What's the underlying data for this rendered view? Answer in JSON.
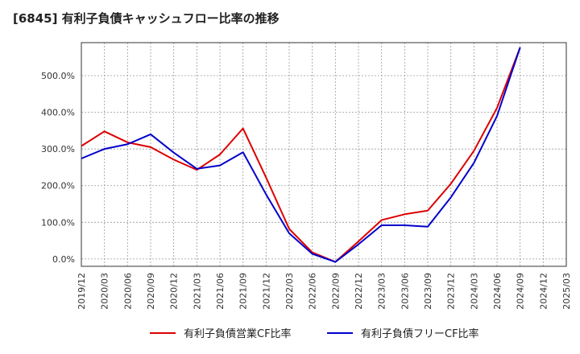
{
  "title": "[6845]  有利子負債キャッシュフロー比率の推移",
  "chart_data": {
    "type": "line",
    "title": "[6845]  有利子負債キャッシュフロー比率の推移",
    "xlabel": "",
    "ylabel": "",
    "x": [
      "2019/12",
      "2020/03",
      "2020/06",
      "2020/09",
      "2020/12",
      "2021/03",
      "2021/06",
      "2021/09",
      "2021/12",
      "2022/03",
      "2022/06",
      "2022/09",
      "2022/12",
      "2023/03",
      "2023/06",
      "2023/09",
      "2023/12",
      "2024/03",
      "2024/06",
      "2024/09"
    ],
    "x_ticks": [
      "2019/12",
      "2020/03",
      "2020/06",
      "2020/09",
      "2020/12",
      "2021/03",
      "2021/06",
      "2021/09",
      "2021/12",
      "2022/03",
      "2022/06",
      "2022/09",
      "2022/12",
      "2023/03",
      "2023/06",
      "2023/09",
      "2023/12",
      "2024/03",
      "2024/06",
      "2024/09",
      "2024/12",
      "2025/03"
    ],
    "y_ticks": [
      0,
      100,
      200,
      300,
      400,
      500
    ],
    "y_tick_labels": [
      "0.0%",
      "100.0%",
      "200.0%",
      "300.0%",
      "400.0%",
      "500.0%"
    ],
    "ylim": [
      -20,
      590
    ],
    "grid": true,
    "legend_position": "bottom",
    "series": [
      {
        "name": "有利子負債営業CF比率",
        "color": "#dd0000",
        "values": [
          308,
          348,
          318,
          305,
          271,
          243,
          285,
          356,
          222,
          82,
          18,
          -8,
          48,
          106,
          122,
          132,
          205,
          295,
          412,
          577
        ]
      },
      {
        "name": "有利子負債フリーCF比率",
        "color": "#0000cc",
        "values": [
          274,
          300,
          313,
          340,
          290,
          246,
          255,
          291,
          176,
          70,
          14,
          -8,
          40,
          92,
          92,
          88,
          168,
          262,
          390,
          577
        ]
      }
    ]
  }
}
